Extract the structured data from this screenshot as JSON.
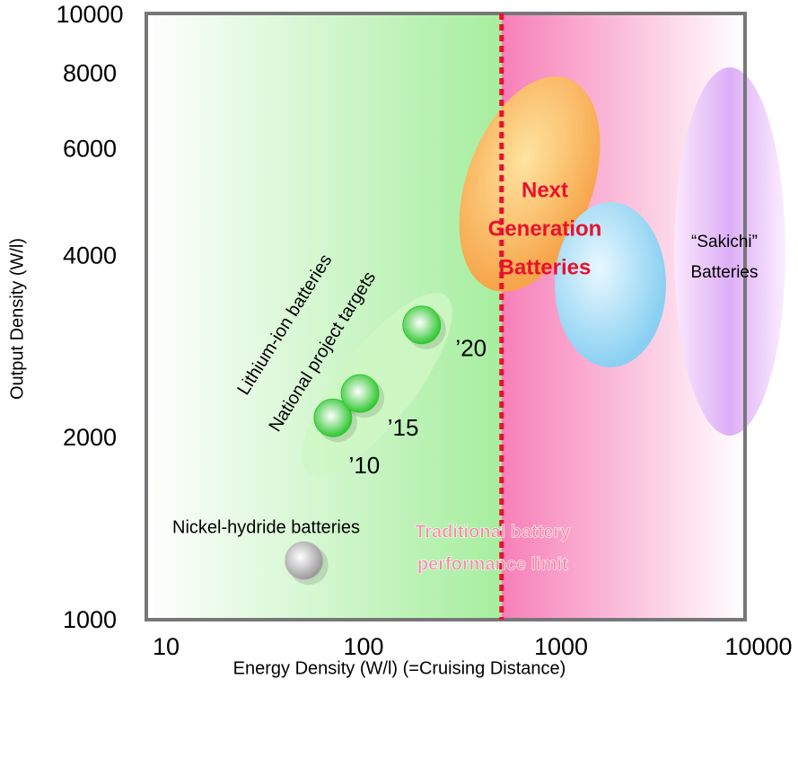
{
  "chart_data": {
    "type": "scatter",
    "x_label": "Energy Density (W/l) (=Cruising Distance)",
    "y_label": "Output Density (W/l)",
    "log_x": true,
    "log_y": true,
    "xlim": [
      10,
      10000
    ],
    "ylim": [
      1000,
      10000
    ],
    "xticks": [
      10,
      100,
      1000,
      10000
    ],
    "yticks": [
      1000,
      2000,
      4000,
      6000,
      8000,
      10000
    ],
    "limit_x": 500,
    "limit_label": [
      "Traditional battery",
      "performance limit"
    ],
    "series": [
      {
        "name": "Nickel-hydride batteries",
        "color": "#b8b8b8",
        "x": [
          50
        ],
        "values": [
          1260
        ]
      },
      {
        "name": "National project targets",
        "color": "#2ecc2e",
        "x": [
          70,
          96,
          197
        ],
        "values": [
          2170,
          2380,
          3090
        ],
        "labels": [
          "’10",
          "’15",
          "’20"
        ]
      }
    ],
    "region_labels": {
      "lithium": "Lithium-ion batteries",
      "next": [
        "Next",
        "Generation",
        "Batteries"
      ],
      "sakichi": [
        "“Sakichi”",
        "Batteries"
      ]
    }
  }
}
